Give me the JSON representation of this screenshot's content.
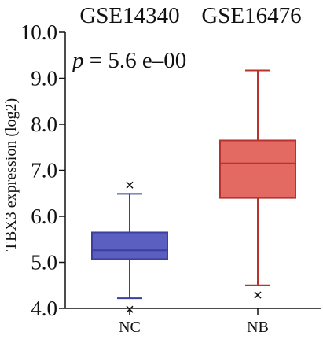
{
  "chart_data": {
    "type": "box",
    "header_labels": [
      "GSE14340",
      "GSE16476"
    ],
    "annotation": {
      "p_symbol": "p",
      "p_rest": " = 5.6 e–00"
    },
    "ylabel": "TBX3 expression (log2)",
    "ylim": [
      4.0,
      10.0
    ],
    "yticks": [
      4.0,
      5.0,
      6.0,
      7.0,
      8.0,
      9.0,
      10.0
    ],
    "ytick_labels": [
      "4.0",
      "5.0",
      "6.0",
      "7.0",
      "8.0",
      "9.0",
      "10.0"
    ],
    "categories": [
      "NC",
      "NB"
    ],
    "boxes": [
      {
        "category": "NC",
        "whisker_low": 4.22,
        "q1": 5.07,
        "median": 5.26,
        "q3": 5.65,
        "whisker_high": 6.49,
        "outliers": [
          6.68,
          3.98
        ],
        "fill": "#5a5fc0",
        "stroke": "#3a3fa0"
      },
      {
        "category": "NB",
        "whisker_low": 4.5,
        "q1": 6.4,
        "median": 7.15,
        "q3": 7.65,
        "whisker_high": 9.17,
        "outliers": [
          4.29
        ],
        "fill": "#e36a63",
        "stroke": "#b8322e"
      }
    ],
    "grid": false,
    "legend": "none"
  }
}
